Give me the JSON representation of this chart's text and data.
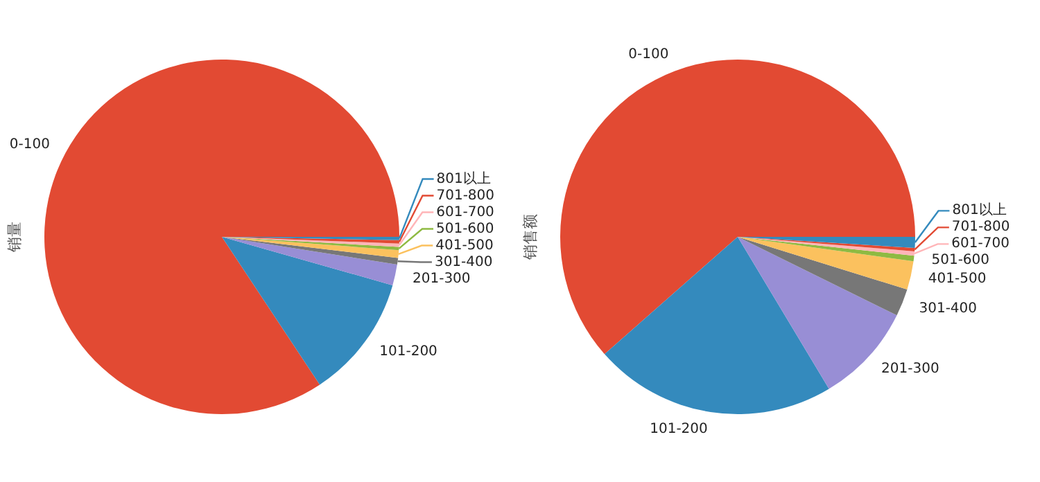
{
  "chart_data": [
    {
      "type": "pie",
      "ylabel": "销量",
      "categories": [
        "0-100",
        "101-200",
        "201-300",
        "301-400",
        "401-500",
        "501-600",
        "601-700",
        "701-800",
        "801以上"
      ],
      "values": [
        84.3,
        11.3,
        1.9,
        0.6,
        0.7,
        0.3,
        0.3,
        0.3,
        0.3
      ],
      "colors": [
        "#e24a33",
        "#348abd",
        "#988ed5",
        "#777777",
        "#fbc15e",
        "#8eba42",
        "#ffb5b8",
        "#e24a33",
        "#348abd"
      ]
    },
    {
      "type": "pie",
      "ylabel": "销售额",
      "categories": [
        "0-100",
        "101-200",
        "201-300",
        "301-400",
        "401-500",
        "501-600",
        "601-700",
        "701-800",
        "801以上"
      ],
      "values": [
        61.5,
        22.1,
        9.1,
        2.5,
        2.6,
        0.5,
        0.4,
        0.3,
        1.0
      ],
      "colors": [
        "#e24a33",
        "#348abd",
        "#988ed5",
        "#777777",
        "#fbc15e",
        "#8eba42",
        "#ffb5b8",
        "#e24a33",
        "#348abd"
      ]
    }
  ]
}
